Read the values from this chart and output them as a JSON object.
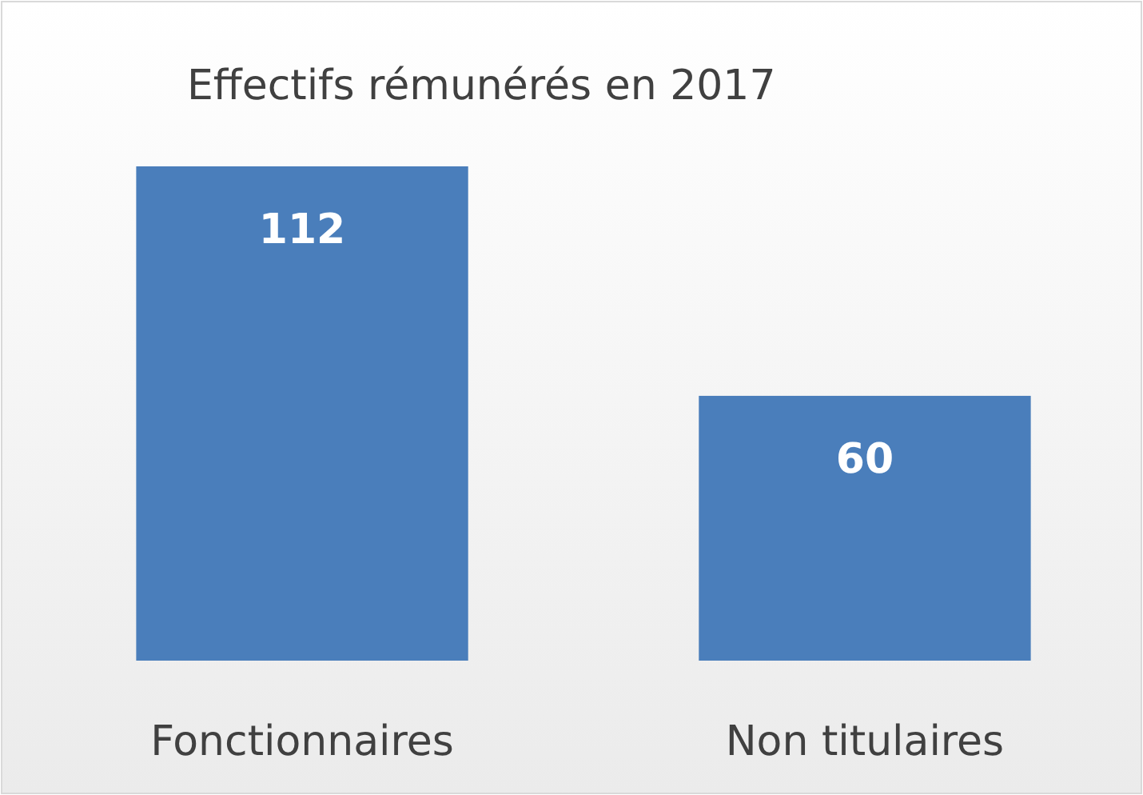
{
  "chart_data": {
    "type": "bar",
    "title": "Effectifs rémunérés en 2017",
    "categories": [
      "Fonctionnaires",
      "Non titulaires"
    ],
    "values": [
      112,
      60
    ],
    "color": "#4a7ebb",
    "data_labels": true
  }
}
